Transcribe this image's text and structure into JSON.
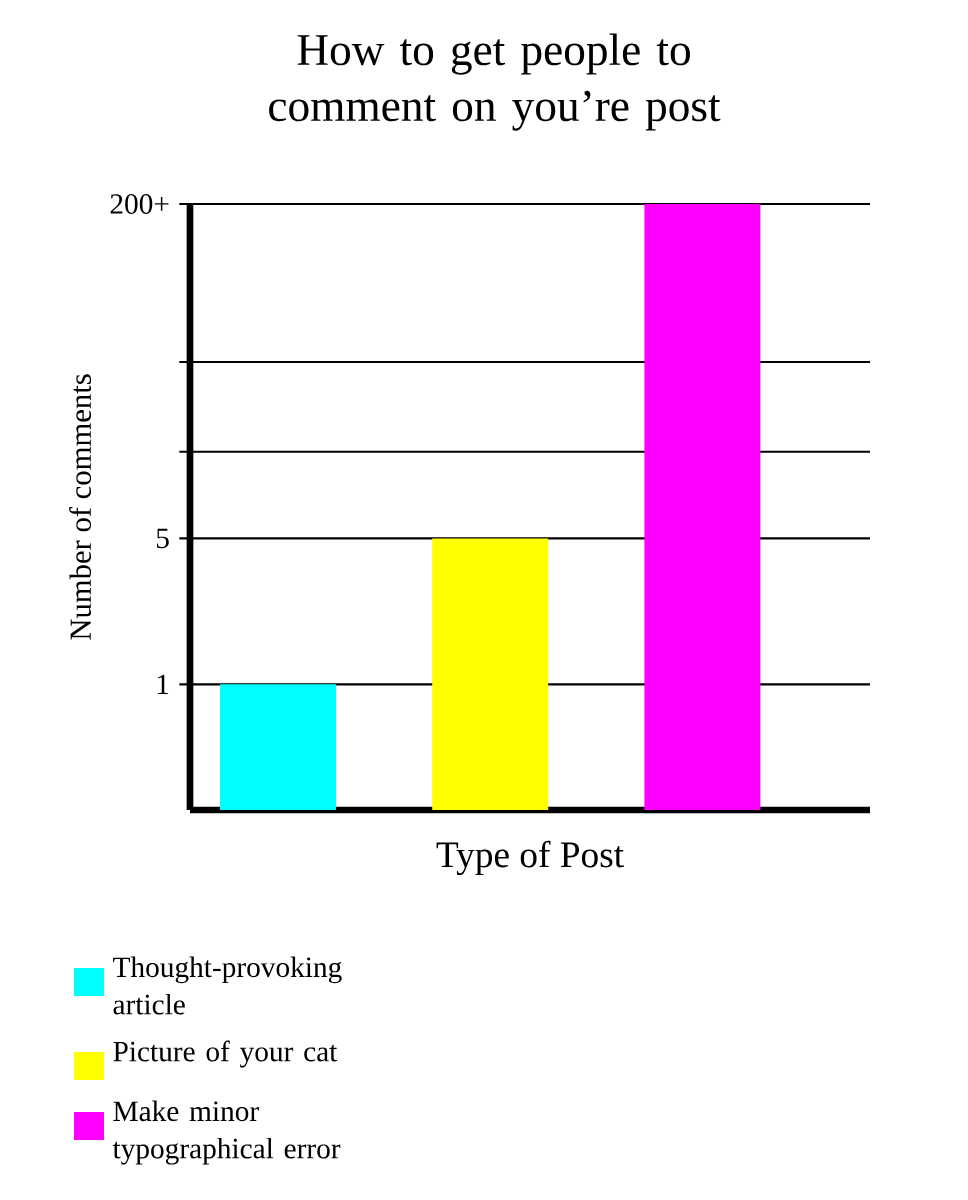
{
  "chart_data": {
    "type": "bar",
    "title": "How to get people to comment on you’re post",
    "xlabel": "Type of Post",
    "ylabel": "Number of comments",
    "categories": [
      null,
      null,
      null
    ],
    "log": "y",
    "ylim": [
      0.25,
      200
    ],
    "yticks": [
      1,
      5,
      {
        "value": 13,
        "label": null
      },
      {
        "value": 35,
        "label": null
      },
      {
        "value": 200,
        "label": "200+"
      }
    ],
    "series": [
      {
        "name": "Thought-provoking article",
        "color": "#00ffff",
        "values": [
          1,
          null,
          null
        ]
      },
      {
        "name": "Picture of your cat",
        "color": "#ffff00",
        "values": [
          null,
          5,
          null
        ]
      },
      {
        "name": "Make minor typographical error",
        "color": "#ff00ff",
        "values": [
          null,
          null,
          200
        ]
      }
    ],
    "grid": "y",
    "legend": "bottom left"
  }
}
